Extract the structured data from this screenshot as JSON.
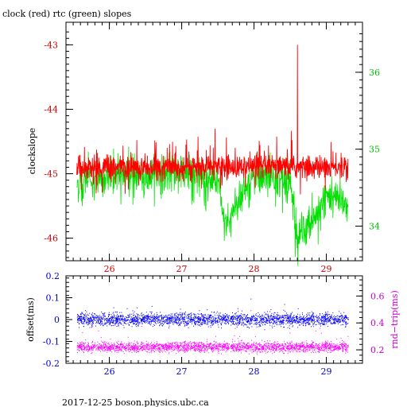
{
  "title": "clock (red) rtc (green) slopes",
  "footer": "2017-12-25  boson.physics.ubc.ca",
  "colors": {
    "clock": "#ff0000",
    "rtc": "#00e000",
    "offset": "#0000ff",
    "rnd_trip": "#ff00ff",
    "frame": "#000000"
  },
  "chart_data": [
    {
      "type": "line",
      "title": "clock (red) rtc (green) slopes",
      "ylabel": "clockslope",
      "xlim": [
        25.4,
        29.5
      ],
      "ylim": [
        -46.35,
        -42.65
      ],
      "ylim_right": [
        33.55,
        36.65
      ],
      "x_ticks": [
        "26",
        "27",
        "28",
        "29"
      ],
      "y_ticks_left": [
        "-43",
        "-44",
        "-45",
        "-46"
      ],
      "y_ticks_right": [
        "34",
        "35",
        "36"
      ],
      "series": [
        {
          "name": "clock",
          "axis": "left",
          "x": [
            25.55,
            26.0,
            26.5,
            27.0,
            27.4,
            27.6,
            28.0,
            28.5,
            28.6,
            29.0,
            29.3
          ],
          "values": [
            -44.9,
            -44.9,
            -44.9,
            -44.9,
            -44.9,
            -44.9,
            -44.9,
            -44.9,
            -43.0,
            -44.9,
            -44.9
          ]
        },
        {
          "name": "rtc",
          "axis": "right",
          "x": [
            25.55,
            26.0,
            26.5,
            27.0,
            27.5,
            27.6,
            28.0,
            28.5,
            28.6,
            29.0,
            29.3
          ],
          "values": [
            34.55,
            34.7,
            34.65,
            34.7,
            34.6,
            34.0,
            34.65,
            34.6,
            33.8,
            34.4,
            34.25
          ]
        }
      ]
    },
    {
      "type": "scatter",
      "ylabel": "offset(ms)",
      "ylabel_right": "rnd−trip(ms)",
      "xlim": [
        25.4,
        29.5
      ],
      "ylim": [
        -0.2,
        0.2
      ],
      "ylim_right": [
        0.1,
        0.75
      ],
      "x_ticks": [
        "26",
        "27",
        "28",
        "29"
      ],
      "y_ticks_left": [
        "0.2",
        "0.1",
        "0",
        "-0.1",
        "-0.2"
      ],
      "y_ticks_right": [
        "0.6",
        "0.4",
        "0.2"
      ],
      "series": [
        {
          "name": "offset",
          "axis": "left",
          "x": [
            25.55,
            26.0,
            26.5,
            27.0,
            27.5,
            28.0,
            28.5,
            29.0,
            29.3
          ],
          "values": [
            0.0,
            0.0,
            0.0,
            0.0,
            0.0,
            0.0,
            0.0,
            0.0,
            0.0
          ]
        },
        {
          "name": "rnd-trip",
          "axis": "right",
          "x": [
            25.55,
            26.0,
            26.5,
            27.0,
            27.5,
            28.0,
            28.5,
            29.0,
            29.3
          ],
          "values": [
            0.22,
            0.22,
            0.22,
            0.22,
            0.22,
            0.22,
            0.22,
            0.22,
            0.22
          ]
        }
      ]
    }
  ]
}
